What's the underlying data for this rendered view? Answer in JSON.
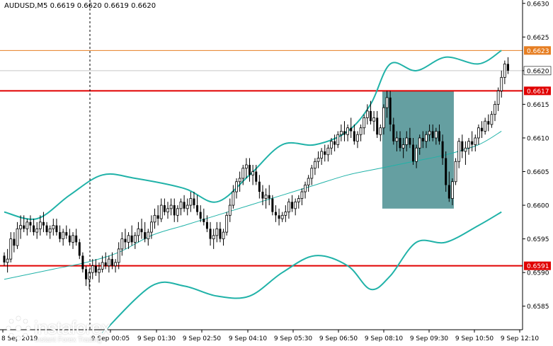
{
  "header": {
    "symbol": "AUDUSD,M5",
    "ohlc": "0.6619 0.6620 0.6619 0.6620"
  },
  "branding": {
    "name": "instaforex",
    "tagline": "Instant Forex Trading",
    "logo_icon": "instaforex-logo-icon"
  },
  "colors": {
    "background": "#ffffff",
    "bollinger": "#20b2a8",
    "moving_average": "#20b2a8",
    "support_resistance": "#e00000",
    "ask_line": "#e67e22",
    "highlight_box": "#4a8e91",
    "candles": "#000000"
  },
  "chart_data": {
    "type": "candlestick",
    "title": "AUDUSD,M5",
    "x_ticks": [
      "9 Sep 00:05",
      "9 Sep 01:30",
      "9 Sep 02:50",
      "9 Sep 04:10",
      "9 Sep 05:30",
      "9 Sep 06:50",
      "9 Sep 08:10",
      "9 Sep 09:30",
      "9 Sep 10:50",
      "9 Sep 12:10"
    ],
    "x_first_label": "8 Sep 2019",
    "y_ticks": [
      "0.6630",
      "0.6625",
      "0.6620",
      "0.6615",
      "0.6610",
      "0.6605",
      "0.6600",
      "0.6595",
      "0.6590",
      "0.6585"
    ],
    "ylim": [
      0.6581,
      0.6631
    ],
    "grid": false,
    "horizontal_levels": [
      {
        "label": "0.6623",
        "value": 0.6623,
        "style": "ask"
      },
      {
        "label": "0.6620",
        "value": 0.662,
        "style": "current"
      },
      {
        "label": "0.6617",
        "value": 0.6617,
        "style": "level"
      },
      {
        "label": "0.6591",
        "value": 0.6591,
        "style": "level"
      }
    ],
    "highlight_zone": {
      "start_index": 116,
      "end_index": 137,
      "top": 0.6617,
      "bottom": 0.65995
    },
    "candles": [
      [
        0.65925,
        0.6593,
        0.6591,
        0.65915
      ],
      [
        0.65915,
        0.65935,
        0.659,
        0.6592
      ],
      [
        0.6592,
        0.6596,
        0.65915,
        0.6595
      ],
      [
        0.6595,
        0.6596,
        0.6593,
        0.6594
      ],
      [
        0.6594,
        0.65975,
        0.65935,
        0.65965
      ],
      [
        0.65965,
        0.65985,
        0.6595,
        0.6597
      ],
      [
        0.6597,
        0.65985,
        0.6596,
        0.65965
      ],
      [
        0.65965,
        0.6598,
        0.65955,
        0.65975
      ],
      [
        0.65975,
        0.65985,
        0.6596,
        0.6597
      ],
      [
        0.6597,
        0.6598,
        0.65955,
        0.6596
      ],
      [
        0.6596,
        0.65975,
        0.6595,
        0.65965
      ],
      [
        0.65965,
        0.65985,
        0.65955,
        0.65975
      ],
      [
        0.65975,
        0.6599,
        0.6596,
        0.6597
      ],
      [
        0.6597,
        0.65975,
        0.65955,
        0.6596
      ],
      [
        0.6596,
        0.6597,
        0.6595,
        0.65965
      ],
      [
        0.65965,
        0.6598,
        0.65955,
        0.6597
      ],
      [
        0.6597,
        0.6598,
        0.65955,
        0.6596
      ],
      [
        0.6596,
        0.6597,
        0.65945,
        0.6595
      ],
      [
        0.6595,
        0.65965,
        0.6594,
        0.6596
      ],
      [
        0.6596,
        0.6597,
        0.6595,
        0.65955
      ],
      [
        0.65955,
        0.65965,
        0.6594,
        0.65945
      ],
      [
        0.65945,
        0.6596,
        0.65935,
        0.65955
      ],
      [
        0.65955,
        0.65965,
        0.6594,
        0.65945
      ],
      [
        0.65945,
        0.6595,
        0.6592,
        0.65925
      ],
      [
        0.65925,
        0.6593,
        0.659,
        0.65905
      ],
      [
        0.65905,
        0.6591,
        0.6588,
        0.6589
      ],
      [
        0.6589,
        0.65905,
        0.65875,
        0.659
      ],
      [
        0.659,
        0.6592,
        0.6589,
        0.6591
      ],
      [
        0.6591,
        0.6592,
        0.65895,
        0.659
      ],
      [
        0.659,
        0.65915,
        0.65885,
        0.65905
      ],
      [
        0.65905,
        0.65925,
        0.659,
        0.65915
      ],
      [
        0.65915,
        0.6593,
        0.65905,
        0.6591
      ],
      [
        0.6591,
        0.65925,
        0.659,
        0.6592
      ],
      [
        0.6592,
        0.6593,
        0.65905,
        0.6591
      ],
      [
        0.6591,
        0.6592,
        0.659,
        0.65915
      ],
      [
        0.65915,
        0.65945,
        0.65905,
        0.65935
      ],
      [
        0.65935,
        0.6596,
        0.65925,
        0.6595
      ],
      [
        0.6595,
        0.65965,
        0.65935,
        0.65945
      ],
      [
        0.65945,
        0.6596,
        0.65935,
        0.65955
      ],
      [
        0.65955,
        0.6597,
        0.6594,
        0.65945
      ],
      [
        0.65945,
        0.6596,
        0.65935,
        0.65955
      ],
      [
        0.65955,
        0.65975,
        0.65945,
        0.65965
      ],
      [
        0.65965,
        0.6598,
        0.6595,
        0.6596
      ],
      [
        0.6596,
        0.65975,
        0.65945,
        0.6595
      ],
      [
        0.6595,
        0.65965,
        0.6594,
        0.6596
      ],
      [
        0.6596,
        0.65985,
        0.6595,
        0.65975
      ],
      [
        0.65975,
        0.65995,
        0.65965,
        0.65985
      ],
      [
        0.65985,
        0.66,
        0.6597,
        0.6598
      ],
      [
        0.6598,
        0.6601,
        0.65975,
        0.66
      ],
      [
        0.66,
        0.6601,
        0.65985,
        0.6599
      ],
      [
        0.6599,
        0.66005,
        0.6598,
        0.65995
      ],
      [
        0.65995,
        0.6601,
        0.65985,
        0.66
      ],
      [
        0.66,
        0.6601,
        0.65975,
        0.65985
      ],
      [
        0.65985,
        0.66,
        0.65975,
        0.65995
      ],
      [
        0.65995,
        0.6601,
        0.65985,
        0.66005
      ],
      [
        0.66005,
        0.66015,
        0.6599,
        0.65995
      ],
      [
        0.65995,
        0.6601,
        0.65985,
        0.66
      ],
      [
        0.66,
        0.6602,
        0.6599,
        0.6601
      ],
      [
        0.6601,
        0.6602,
        0.65995,
        0.66
      ],
      [
        0.66,
        0.66015,
        0.65985,
        0.6599
      ],
      [
        0.6599,
        0.66,
        0.65975,
        0.6598
      ],
      [
        0.6598,
        0.65995,
        0.6597,
        0.65975
      ],
      [
        0.65975,
        0.65985,
        0.6596,
        0.65965
      ],
      [
        0.65965,
        0.65975,
        0.6594,
        0.6595
      ],
      [
        0.6595,
        0.65965,
        0.65935,
        0.65955
      ],
      [
        0.65955,
        0.65975,
        0.65945,
        0.65965
      ],
      [
        0.65965,
        0.65975,
        0.65945,
        0.6595
      ],
      [
        0.6595,
        0.65965,
        0.6594,
        0.6596
      ],
      [
        0.6596,
        0.6599,
        0.65955,
        0.65985
      ],
      [
        0.65985,
        0.6601,
        0.65975,
        0.66
      ],
      [
        0.66,
        0.6603,
        0.65995,
        0.6602
      ],
      [
        0.6602,
        0.6604,
        0.6601,
        0.66035
      ],
      [
        0.66035,
        0.6605,
        0.6602,
        0.6604
      ],
      [
        0.6604,
        0.6606,
        0.6603,
        0.66055
      ],
      [
        0.66055,
        0.6607,
        0.6604,
        0.6606
      ],
      [
        0.6606,
        0.6607,
        0.66035,
        0.66045
      ],
      [
        0.66045,
        0.6606,
        0.6603,
        0.6605
      ],
      [
        0.6605,
        0.6606,
        0.6603,
        0.66035
      ],
      [
        0.66035,
        0.66045,
        0.6601,
        0.6602
      ],
      [
        0.6602,
        0.6603,
        0.66,
        0.6601
      ],
      [
        0.6601,
        0.66025,
        0.65995,
        0.66015
      ],
      [
        0.66015,
        0.6603,
        0.66,
        0.6601
      ],
      [
        0.6601,
        0.66015,
        0.65985,
        0.6599
      ],
      [
        0.6599,
        0.66,
        0.65975,
        0.65985
      ],
      [
        0.65985,
        0.65995,
        0.6597,
        0.6598
      ],
      [
        0.6598,
        0.6599,
        0.65975,
        0.65985
      ],
      [
        0.65985,
        0.66,
        0.65975,
        0.6599
      ],
      [
        0.6599,
        0.6601,
        0.6598,
        0.66005
      ],
      [
        0.66005,
        0.66015,
        0.6599,
        0.65995
      ],
      [
        0.65995,
        0.6601,
        0.65985,
        0.66005
      ],
      [
        0.66005,
        0.66015,
        0.65995,
        0.6601
      ],
      [
        0.6601,
        0.66025,
        0.66,
        0.6602
      ],
      [
        0.6602,
        0.66035,
        0.6601,
        0.6603
      ],
      [
        0.6603,
        0.66045,
        0.6602,
        0.6604
      ],
      [
        0.6604,
        0.6606,
        0.6603,
        0.66055
      ],
      [
        0.66055,
        0.6607,
        0.66045,
        0.66065
      ],
      [
        0.66065,
        0.6608,
        0.66055,
        0.6607
      ],
      [
        0.6607,
        0.66085,
        0.6606,
        0.6608
      ],
      [
        0.6608,
        0.6609,
        0.66065,
        0.66075
      ],
      [
        0.66075,
        0.6609,
        0.66065,
        0.66085
      ],
      [
        0.66085,
        0.661,
        0.66075,
        0.66095
      ],
      [
        0.66095,
        0.66105,
        0.6608,
        0.6609
      ],
      [
        0.6609,
        0.6611,
        0.66085,
        0.66105
      ],
      [
        0.66105,
        0.6612,
        0.66095,
        0.6611
      ],
      [
        0.6611,
        0.66125,
        0.66095,
        0.66105
      ],
      [
        0.66105,
        0.6612,
        0.66095,
        0.66115
      ],
      [
        0.66115,
        0.6613,
        0.661,
        0.6611
      ],
      [
        0.6611,
        0.6612,
        0.6609,
        0.66095
      ],
      [
        0.66095,
        0.6611,
        0.66085,
        0.66105
      ],
      [
        0.66105,
        0.6612,
        0.66095,
        0.66115
      ],
      [
        0.66115,
        0.66135,
        0.66105,
        0.6613
      ],
      [
        0.6613,
        0.6615,
        0.6612,
        0.6614
      ],
      [
        0.6614,
        0.66155,
        0.6612,
        0.66125
      ],
      [
        0.66125,
        0.6614,
        0.6611,
        0.6613
      ],
      [
        0.6613,
        0.6614,
        0.661,
        0.66105
      ],
      [
        0.66105,
        0.6612,
        0.66095,
        0.66115
      ],
      [
        0.66115,
        0.6615,
        0.66105,
        0.66145
      ],
      [
        0.66145,
        0.6617,
        0.6613,
        0.6616
      ],
      [
        0.6616,
        0.6617,
        0.6611,
        0.6612
      ],
      [
        0.6612,
        0.6613,
        0.6609,
        0.66095
      ],
      [
        0.66095,
        0.6611,
        0.6608,
        0.661
      ],
      [
        0.661,
        0.6611,
        0.6608,
        0.66085
      ],
      [
        0.66085,
        0.661,
        0.6607,
        0.6609
      ],
      [
        0.6609,
        0.6611,
        0.6608,
        0.661
      ],
      [
        0.661,
        0.66115,
        0.66085,
        0.6609
      ],
      [
        0.6609,
        0.661,
        0.6606,
        0.66065
      ],
      [
        0.66065,
        0.6609,
        0.66055,
        0.66085
      ],
      [
        0.66085,
        0.66105,
        0.66075,
        0.661
      ],
      [
        0.661,
        0.6611,
        0.66085,
        0.66095
      ],
      [
        0.66095,
        0.6611,
        0.66085,
        0.66105
      ],
      [
        0.66105,
        0.6612,
        0.66095,
        0.6611
      ],
      [
        0.6611,
        0.6612,
        0.66095,
        0.661
      ],
      [
        0.661,
        0.66115,
        0.6609,
        0.6611
      ],
      [
        0.6611,
        0.6612,
        0.6609,
        0.66095
      ],
      [
        0.66095,
        0.66105,
        0.6606,
        0.6607
      ],
      [
        0.6607,
        0.6608,
        0.6602,
        0.6603
      ],
      [
        0.6603,
        0.6605,
        0.66005,
        0.6601
      ],
      [
        0.6601,
        0.6604,
        0.66,
        0.66035
      ],
      [
        0.66035,
        0.6607,
        0.6603,
        0.66065
      ],
      [
        0.66065,
        0.661,
        0.66055,
        0.66095
      ],
      [
        0.66095,
        0.66105,
        0.6607,
        0.6608
      ],
      [
        0.6608,
        0.66095,
        0.6606,
        0.66085
      ],
      [
        0.66085,
        0.661,
        0.66075,
        0.66095
      ],
      [
        0.66095,
        0.6611,
        0.6608,
        0.6609
      ],
      [
        0.6609,
        0.66105,
        0.6608,
        0.661
      ],
      [
        0.661,
        0.6612,
        0.6609,
        0.66115
      ],
      [
        0.66115,
        0.66125,
        0.661,
        0.6611
      ],
      [
        0.6611,
        0.6613,
        0.66105,
        0.66125
      ],
      [
        0.66125,
        0.66135,
        0.6611,
        0.6612
      ],
      [
        0.6612,
        0.6614,
        0.66115,
        0.66135
      ],
      [
        0.66135,
        0.66155,
        0.66125,
        0.6615
      ],
      [
        0.6615,
        0.66175,
        0.6614,
        0.6617
      ],
      [
        0.6617,
        0.662,
        0.6616,
        0.6619
      ],
      [
        0.6619,
        0.66215,
        0.6618,
        0.6621
      ],
      [
        0.6621,
        0.6622,
        0.66195,
        0.662
      ]
    ],
    "bollinger_upper": [
      [
        0,
        0.6599
      ],
      [
        10,
        0.6598
      ],
      [
        20,
        0.66015
      ],
      [
        30,
        0.66045
      ],
      [
        40,
        0.6604
      ],
      [
        55,
        0.66025
      ],
      [
        65,
        0.66005
      ],
      [
        75,
        0.66045
      ],
      [
        85,
        0.6609
      ],
      [
        95,
        0.6609
      ],
      [
        105,
        0.6611
      ],
      [
        112,
        0.6615
      ],
      [
        118,
        0.6621
      ],
      [
        126,
        0.662
      ],
      [
        135,
        0.6622
      ],
      [
        145,
        0.6621
      ],
      [
        152,
        0.6623
      ]
    ],
    "bollinger_lower": [
      [
        30,
        0.6581
      ],
      [
        45,
        0.6588
      ],
      [
        55,
        0.6588
      ],
      [
        65,
        0.65865
      ],
      [
        75,
        0.65865
      ],
      [
        85,
        0.659
      ],
      [
        95,
        0.65925
      ],
      [
        105,
        0.6591
      ],
      [
        112,
        0.65875
      ],
      [
        118,
        0.65895
      ],
      [
        126,
        0.65945
      ],
      [
        135,
        0.65945
      ],
      [
        145,
        0.6597
      ],
      [
        152,
        0.6599
      ]
    ],
    "moving_average": [
      [
        0,
        0.6589
      ],
      [
        15,
        0.65905
      ],
      [
        25,
        0.65915
      ],
      [
        35,
        0.6593
      ],
      [
        45,
        0.65955
      ],
      [
        55,
        0.6597
      ],
      [
        65,
        0.65985
      ],
      [
        75,
        0.66
      ],
      [
        85,
        0.66015
      ],
      [
        95,
        0.6603
      ],
      [
        105,
        0.66045
      ],
      [
        115,
        0.66055
      ],
      [
        125,
        0.66065
      ],
      [
        135,
        0.66075
      ],
      [
        145,
        0.6609
      ],
      [
        152,
        0.6611
      ]
    ]
  }
}
